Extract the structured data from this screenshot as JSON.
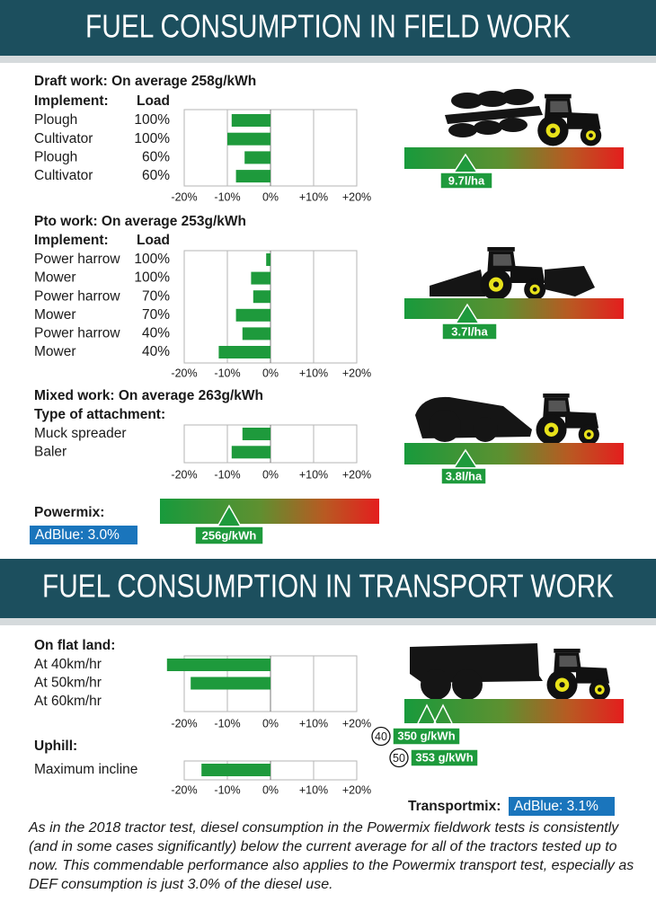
{
  "header": {
    "title": "FUEL CONSUMPTION IN FIELD WORK"
  },
  "chart_data": [
    {
      "type": "bar",
      "orientation": "horizontal",
      "title": "Draft work: On average 258g/kWh",
      "category_header": "Implement:",
      "load_header": "Load",
      "categories": [
        "Plough",
        "Cultivator",
        "Plough",
        "Cultivator"
      ],
      "loads": [
        "100%",
        "100%",
        "60%",
        "60%"
      ],
      "values": [
        -9,
        -10,
        -6,
        -8
      ],
      "color": "#1e9a3c",
      "grid": true,
      "xlim": [
        -20,
        20
      ],
      "xticks": [
        {
          "value": -20,
          "label": "-20%"
        },
        {
          "value": -10,
          "label": "-10%"
        },
        {
          "value": 0,
          "label": "0%"
        },
        {
          "value": 10,
          "label": "+10%"
        },
        {
          "value": 20,
          "label": "+20%"
        }
      ]
    },
    {
      "type": "bar",
      "orientation": "horizontal",
      "title": "Pto work: On average 253g/kWh",
      "category_header": "Implement:",
      "load_header": "Load",
      "categories": [
        "Power harrow",
        "Mower",
        "Power harrow",
        "Mower",
        "Power harrow",
        "Mower"
      ],
      "loads": [
        "100%",
        "100%",
        "70%",
        "70%",
        "40%",
        "40%"
      ],
      "values": [
        -1,
        -4.5,
        -4,
        -8,
        -6.5,
        -12
      ],
      "color": "#1e9a3c",
      "grid": true,
      "xlim": [
        -20,
        20
      ],
      "xticks": [
        {
          "value": -20,
          "label": "-20%"
        },
        {
          "value": -10,
          "label": "-10%"
        },
        {
          "value": 0,
          "label": "0%"
        },
        {
          "value": 10,
          "label": "+10%"
        },
        {
          "value": 20,
          "label": "+20%"
        }
      ]
    },
    {
      "type": "bar",
      "orientation": "horizontal",
      "title": "Mixed work: On average 263g/kWh",
      "category_header": "Type of attachment:",
      "categories": [
        "Muck spreader",
        "Baler"
      ],
      "values": [
        -6.5,
        -9
      ],
      "color": "#1e9a3c",
      "grid": true,
      "xlim": [
        -20,
        20
      ],
      "xticks": [
        {
          "value": -20,
          "label": "-20%"
        },
        {
          "value": -10,
          "label": "-10%"
        },
        {
          "value": 0,
          "label": "0%"
        },
        {
          "value": 10,
          "label": "+10%"
        },
        {
          "value": 20,
          "label": "+20%"
        }
      ]
    },
    {
      "type": "bar",
      "orientation": "horizontal",
      "title": "On flat land:",
      "categories": [
        "At 40km/hr",
        "At 50km/hr",
        "At 60km/hr"
      ],
      "values": [
        -24,
        -18.5,
        null
      ],
      "color": "#1e9a3c",
      "grid": true,
      "xlim": [
        -20,
        20
      ],
      "xticks": [
        {
          "value": -20,
          "label": "-20%"
        },
        {
          "value": -10,
          "label": "-10%"
        },
        {
          "value": 0,
          "label": "0%"
        },
        {
          "value": 10,
          "label": "+10%"
        },
        {
          "value": 20,
          "label": "+20%"
        }
      ]
    },
    {
      "type": "bar",
      "orientation": "horizontal",
      "title": "Uphill:",
      "categories": [
        "Maximum incline"
      ],
      "values": [
        -16
      ],
      "color": "#1e9a3c",
      "grid": true,
      "xlim": [
        -20,
        20
      ],
      "xticks": [
        {
          "value": -20,
          "label": "-20%"
        },
        {
          "value": -10,
          "label": "-10%"
        },
        {
          "value": 0,
          "label": "0%"
        },
        {
          "value": 10,
          "label": "+10%"
        },
        {
          "value": 20,
          "label": "+20%"
        }
      ]
    }
  ],
  "gauges": [
    {
      "label": "9.7l/ha"
    },
    {
      "label": "3.7l/ha"
    },
    {
      "label": "3.8l/ha"
    }
  ],
  "powermix": {
    "title": "Powermix:",
    "adblue": "AdBlue: 3.0%",
    "gauge_label": "256g/kWh"
  },
  "transport_header": {
    "title": "FUEL CONSUMPTION IN TRANSPORT WORK"
  },
  "transport_gauge": {
    "markers": [
      {
        "speed": "40",
        "label": "350 g/kWh"
      },
      {
        "speed": "50",
        "label": "353 g/kWh"
      }
    ]
  },
  "transportmix": {
    "title": "Transportmix:",
    "adblue": "AdBlue: 3.1%"
  },
  "footer": "As in the 2018 tractor test, diesel consumption in the Powermix fieldwork tests is consistently (and in some cases significantly) below the current average for all of the tractors tested up to now. This commendable performance also applies to the Powermix transport test, especially as DEF consumption is just 3.0% of the diesel use."
}
